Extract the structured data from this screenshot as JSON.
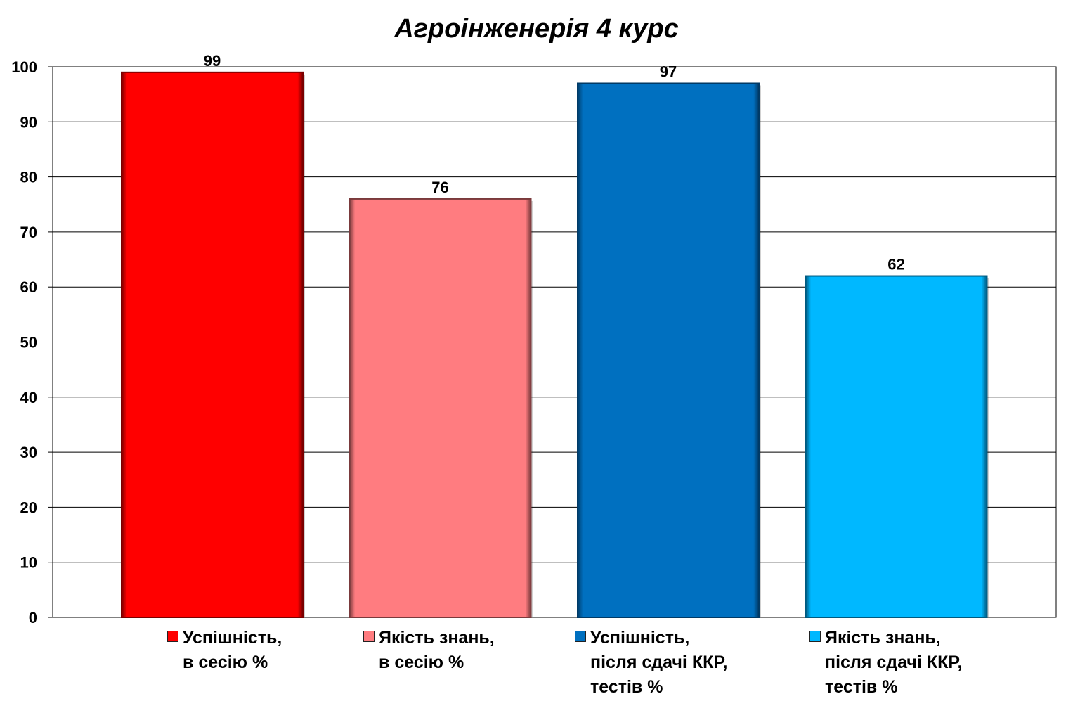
{
  "chart_data": {
    "type": "bar",
    "title": "Агроінженерія 4 курс",
    "xlabel": "",
    "ylabel": "",
    "ylim": [
      0,
      100
    ],
    "yticks": [
      0,
      10,
      20,
      30,
      40,
      50,
      60,
      70,
      80,
      90,
      100
    ],
    "grid": true,
    "legend_position": "bottom",
    "series": [
      {
        "name": "Успішність,\nв сесію %",
        "value": 99,
        "color": "#ff0000",
        "edge": "#7a0000"
      },
      {
        "name": "Якість знань,\nв сесію %",
        "value": 76,
        "color": "#ff7c80",
        "edge": "#7a3a3c"
      },
      {
        "name": "Успішність,\nпісля сдачі ККР,\nтестів %",
        "value": 97,
        "color": "#0070c0",
        "edge": "#003a66"
      },
      {
        "name": "Якість знань,\nпісля сдачі ККР,\nтестів %",
        "value": 62,
        "color": "#00b8ff",
        "edge": "#005a80"
      }
    ]
  }
}
